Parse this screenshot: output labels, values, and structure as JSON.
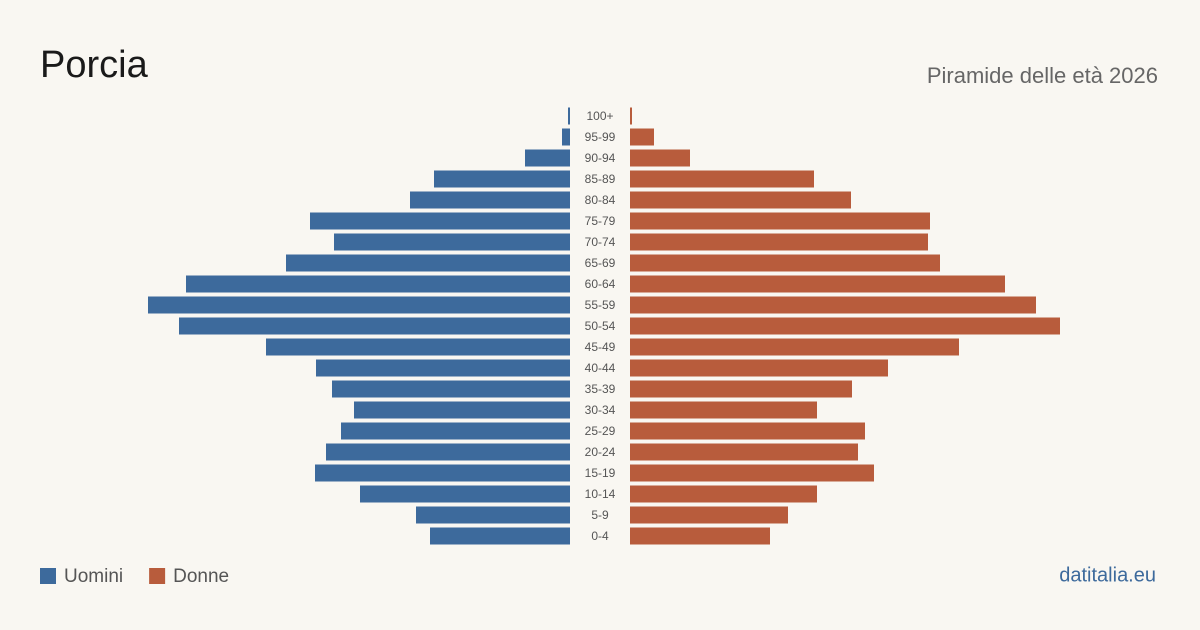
{
  "chart_data": {
    "type": "pyramid",
    "title": "Porcia",
    "subtitle": "Piramide delle età 2026",
    "source": "datitalia.eu",
    "categories": [
      "100+",
      "95-99",
      "90-94",
      "85-89",
      "80-84",
      "75-79",
      "70-74",
      "65-69",
      "60-64",
      "55-59",
      "50-54",
      "45-49",
      "40-44",
      "35-39",
      "30-34",
      "25-29",
      "20-24",
      "15-19",
      "10-14",
      "5-9",
      "0-4"
    ],
    "series": [
      {
        "name": "Uomini",
        "color": "#3d6a9c",
        "values": [
          2,
          8,
          45,
          136,
          160,
          260,
          236,
          284,
          384,
          422,
          391,
          304,
          254,
          238,
          216,
          229,
          244,
          255,
          210,
          154,
          140
        ]
      },
      {
        "name": "Donne",
        "color": "#b85c3c",
        "values": [
          2,
          24,
          60,
          184,
          221,
          300,
          298,
          310,
          375,
          406,
          430,
          329,
          258,
          222,
          187,
          235,
          228,
          244,
          187,
          158,
          140
        ]
      }
    ]
  }
}
